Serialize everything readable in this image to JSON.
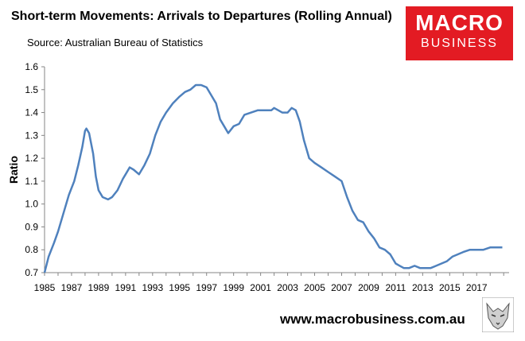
{
  "header": {
    "title": "Short-term Movements: Arrivals to Departures (Rolling Annual)",
    "source": "Source: Australian Bureau of Statistics"
  },
  "logo": {
    "line1": "MACRO",
    "line2": "BUSINESS"
  },
  "footer": {
    "url": "www.macrobusiness.com.au"
  },
  "colors": {
    "line": "#4f81bd",
    "logo_bg": "#e31b23",
    "axis": "#868686"
  },
  "chart_data": {
    "type": "line",
    "title": "Short-term Movements: Arrivals to Departures (Rolling Annual)",
    "xlabel": "",
    "ylabel": "Ratio",
    "xlim": [
      1985,
      2019.4
    ],
    "ylim": [
      0.7,
      1.6
    ],
    "y_ticks": [
      "0.7",
      "0.8",
      "0.9",
      "1.0",
      "1.1",
      "1.2",
      "1.3",
      "1.4",
      "1.5",
      "1.6"
    ],
    "x_ticks": [
      "1985",
      "1987",
      "1989",
      "1991",
      "1993",
      "1995",
      "1997",
      "1999",
      "2001",
      "2003",
      "2005",
      "2007",
      "2009",
      "2011",
      "2013",
      "2015",
      "2017"
    ],
    "grid": false,
    "legend": "none",
    "series": [
      {
        "x": [
          1985.0,
          1985.3,
          1985.7,
          1986.0,
          1986.4,
          1986.8,
          1987.2,
          1987.5,
          1987.8,
          1988.0,
          1988.1,
          1988.3,
          1988.6,
          1988.8,
          1989.0,
          1989.3,
          1989.7,
          1990.0,
          1990.4,
          1990.8,
          1991.0,
          1991.3,
          1991.6,
          1992.0,
          1992.4,
          1992.8,
          1993.2,
          1993.6,
          1994.0,
          1994.5,
          1995.0,
          1995.4,
          1995.8,
          1996.2,
          1996.6,
          1997.0,
          1997.3,
          1997.7,
          1998.0,
          1998.3,
          1998.6,
          1999.0,
          1999.4,
          1999.8,
          2000.3,
          2000.8,
          2001.3,
          2001.8,
          2002.0,
          2002.3,
          2002.6,
          2003.0,
          2003.3,
          2003.6,
          2003.9,
          2004.2,
          2004.6,
          2005.0,
          2005.5,
          2006.0,
          2006.5,
          2007.0,
          2007.4,
          2007.8,
          2008.2,
          2008.6,
          2009.0,
          2009.4,
          2009.8,
          2010.2,
          2010.6,
          2011.0,
          2011.3,
          2011.6,
          2012.0,
          2012.4,
          2012.8,
          2013.2,
          2013.6,
          2014.0,
          2014.4,
          2014.8,
          2015.2,
          2015.6,
          2016.0,
          2016.5,
          2017.0,
          2017.5,
          2018.0,
          2018.5,
          2018.9
        ],
        "y": [
          0.7,
          0.77,
          0.83,
          0.88,
          0.96,
          1.04,
          1.1,
          1.17,
          1.25,
          1.32,
          1.33,
          1.31,
          1.22,
          1.12,
          1.06,
          1.03,
          1.02,
          1.03,
          1.06,
          1.11,
          1.13,
          1.16,
          1.15,
          1.13,
          1.17,
          1.22,
          1.3,
          1.36,
          1.4,
          1.44,
          1.47,
          1.49,
          1.5,
          1.52,
          1.52,
          1.51,
          1.48,
          1.44,
          1.37,
          1.34,
          1.31,
          1.34,
          1.35,
          1.39,
          1.4,
          1.41,
          1.41,
          1.41,
          1.42,
          1.41,
          1.4,
          1.4,
          1.42,
          1.41,
          1.36,
          1.28,
          1.2,
          1.18,
          1.16,
          1.14,
          1.12,
          1.1,
          1.03,
          0.97,
          0.93,
          0.92,
          0.88,
          0.85,
          0.81,
          0.8,
          0.78,
          0.74,
          0.73,
          0.72,
          0.72,
          0.73,
          0.72,
          0.72,
          0.72,
          0.73,
          0.74,
          0.75,
          0.77,
          0.78,
          0.79,
          0.8,
          0.8,
          0.8,
          0.81,
          0.81,
          0.81
        ]
      }
    ]
  }
}
